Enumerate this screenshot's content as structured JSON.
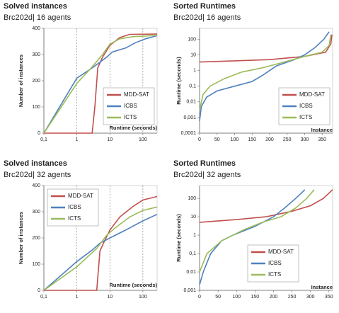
{
  "chart_data": [
    {
      "type": "line",
      "title": "Solved instances",
      "subtitle": "Brc202d| 16 agents",
      "xlabel": "Runtime (seconds)",
      "ylabel": "Number of instances",
      "xscale": "log",
      "xlim": [
        0.1,
        270
      ],
      "xticks": [
        {
          "value": 0.1,
          "label": "0,1"
        },
        1,
        10,
        100
      ],
      "ylim": [
        0,
        400
      ],
      "yticks": [
        0,
        100,
        200,
        300,
        400
      ],
      "grid": "x",
      "legend": "lower right",
      "series": [
        {
          "name": "MDD-SAT",
          "color": "#c0504d",
          "x": [
            0.1,
            2.9,
            3.5,
            4.3,
            6,
            10,
            20,
            40,
            270
          ],
          "values": [
            0,
            0,
            100,
            250,
            290,
            335,
            365,
            377,
            378
          ]
        },
        {
          "name": "ICBS",
          "color": "#4f81bd",
          "x": [
            0.1,
            1,
            3,
            8,
            12,
            30,
            60,
            120,
            270
          ],
          "values": [
            0,
            210,
            250,
            290,
            310,
            325,
            345,
            360,
            372
          ]
        },
        {
          "name": "ICTS",
          "color": "#9bbb59",
          "x": [
            0.1,
            1,
            3,
            6,
            10,
            20,
            50,
            270
          ],
          "values": [
            0,
            190,
            255,
            300,
            340,
            360,
            368,
            373
          ]
        }
      ]
    },
    {
      "type": "line",
      "title": "Sorted Runtimes",
      "subtitle": "Brc202d| 16 agents",
      "xlabel": "Instance",
      "ylabel": "Runtime (seconds)",
      "yscale": "log",
      "xlim": [
        0,
        380
      ],
      "xticks": [
        0,
        50,
        100,
        150,
        200,
        250,
        300,
        350
      ],
      "ylim": [
        0.0001,
        500
      ],
      "yticks": [
        {
          "value": 0.0001,
          "label": "0,0001"
        },
        {
          "value": 0.001,
          "label": "0,001"
        },
        {
          "value": 0.01,
          "label": "0,01"
        },
        {
          "value": 0.1,
          "label": "0,1"
        },
        1,
        10,
        100
      ],
      "grid": false,
      "legend": "lower right",
      "series": [
        {
          "name": "MDD-SAT",
          "color": "#c0504d",
          "x": [
            0,
            100,
            200,
            300,
            360,
            375,
            378
          ],
          "values": [
            3.5,
            4.2,
            5,
            8,
            15,
            50,
            200
          ]
        },
        {
          "name": "ICBS",
          "color": "#4f81bd",
          "x": [
            0,
            5,
            20,
            50,
            100,
            150,
            180,
            220,
            270,
            300,
            330,
            355,
            370
          ],
          "values": [
            0.0006,
            0.005,
            0.02,
            0.05,
            0.1,
            0.2,
            0.5,
            2,
            5,
            10,
            30,
            100,
            300
          ]
        },
        {
          "name": "ICTS",
          "color": "#9bbb59",
          "x": [
            0,
            10,
            30,
            70,
            120,
            180,
            230,
            300,
            350,
            370,
            375
          ],
          "values": [
            0.003,
            0.03,
            0.1,
            0.3,
            0.8,
            1.5,
            3,
            8,
            15,
            40,
            200
          ]
        }
      ]
    },
    {
      "type": "line",
      "title": "Solved instances",
      "subtitle": "Brc202d| 32 agents",
      "xlabel": "Runtime (seconds)",
      "ylabel": "Number of instances",
      "xscale": "log",
      "xlim": [
        0.1,
        270
      ],
      "xticks": [
        {
          "value": 0.1,
          "label": "0,1"
        },
        1,
        10,
        100
      ],
      "ylim": [
        0,
        400
      ],
      "yticks": [
        0,
        100,
        200,
        300,
        400
      ],
      "grid": "x",
      "legend": "upper left",
      "series": [
        {
          "name": "MDD-SAT",
          "color": "#c0504d",
          "x": [
            0.1,
            4,
            5,
            7,
            10,
            20,
            50,
            100,
            270
          ],
          "values": [
            0,
            0,
            150,
            190,
            230,
            280,
            320,
            345,
            358
          ]
        },
        {
          "name": "ICBS",
          "color": "#4f81bd",
          "x": [
            0.1,
            1,
            3,
            5,
            10,
            30,
            100,
            270
          ],
          "values": [
            0,
            110,
            155,
            180,
            200,
            230,
            265,
            290
          ]
        },
        {
          "name": "ICTS",
          "color": "#9bbb59",
          "x": [
            0.1,
            1,
            4,
            8,
            15,
            40,
            100,
            270
          ],
          "values": [
            0,
            90,
            160,
            210,
            240,
            280,
            305,
            318
          ]
        }
      ]
    },
    {
      "type": "line",
      "title": "Sorted Runtimes",
      "subtitle": "Brc202d| 32 agents",
      "xlabel": "Instance",
      "ylabel": "Runtime (seconds)",
      "yscale": "log",
      "xlim": [
        0,
        360
      ],
      "xticks": [
        0,
        50,
        100,
        150,
        200,
        250,
        300,
        350
      ],
      "ylim": [
        0.001,
        500
      ],
      "yticks": [
        {
          "value": 0.001,
          "label": "0,001"
        },
        {
          "value": 0.01,
          "label": "0,01"
        },
        {
          "value": 0.1,
          "label": "0,1"
        },
        1,
        10,
        100
      ],
      "grid": false,
      "legend": "lower center",
      "series": [
        {
          "name": "MDD-SAT",
          "color": "#c0504d",
          "x": [
            0,
            100,
            180,
            250,
            300,
            335,
            360
          ],
          "values": [
            5,
            7,
            10,
            20,
            40,
            100,
            300
          ]
        },
        {
          "name": "ICBS",
          "color": "#4f81bd",
          "x": [
            0,
            10,
            30,
            60,
            90,
            150,
            200,
            230,
            260,
            285
          ],
          "values": [
            0.002,
            0.01,
            0.1,
            0.5,
            1,
            3,
            10,
            30,
            100,
            300
          ]
        },
        {
          "name": "ICTS",
          "color": "#9bbb59",
          "x": [
            0,
            20,
            60,
            120,
            170,
            220,
            260,
            290,
            310
          ],
          "values": [
            0.01,
            0.1,
            0.5,
            2,
            5,
            10,
            30,
            100,
            300
          ]
        }
      ]
    }
  ]
}
